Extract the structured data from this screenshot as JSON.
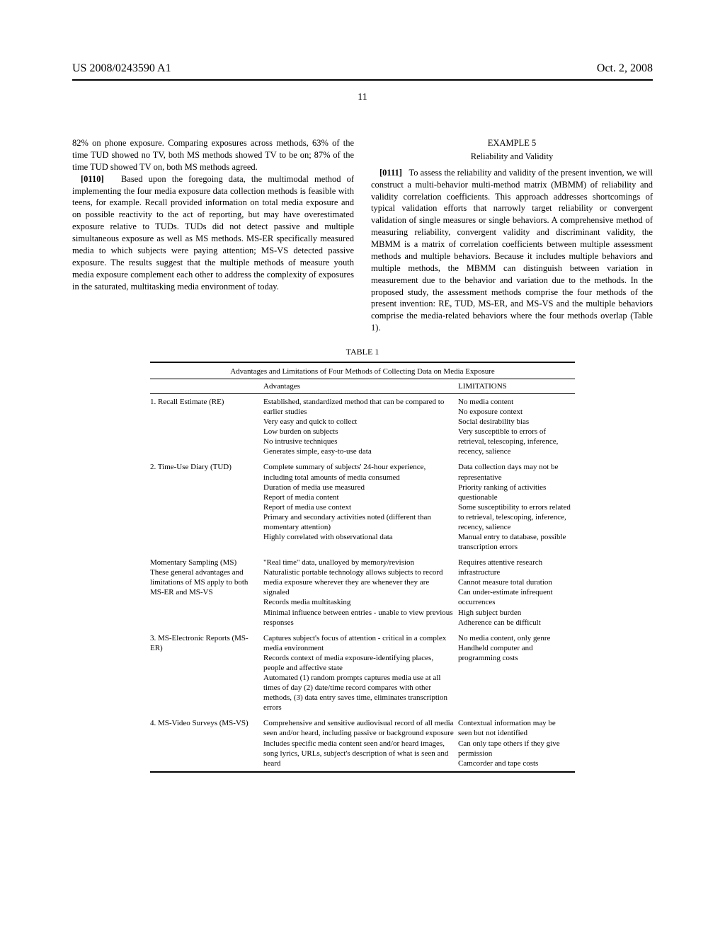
{
  "header": {
    "pub_number": "US 2008/0243590 A1",
    "pub_date": "Oct. 2, 2008",
    "page_number": "11"
  },
  "left_column": {
    "para1": "82% on phone exposure. Comparing exposures across methods, 63% of the time TUD showed no TV, both MS methods showed TV to be on; 87% of the time TUD showed TV on, both MS methods agreed.",
    "para2_num": "[0110]",
    "para2": "Based upon the foregoing data, the multimodal method of implementing the four media exposure data collection methods is feasible with teens, for example. Recall provided information on total media exposure and on possible reactivity to the act of reporting, but may have overestimated exposure relative to TUDs. TUDs did not detect passive and multiple simultaneous exposure as well as MS methods. MS-ER specifically measured media to which subjects were paying attention; MS-VS detected passive exposure. The results suggest that the multiple methods of measure youth media exposure complement each other to address the complexity of exposures in the saturated, multitasking media environment of today."
  },
  "right_column": {
    "example_label": "EXAMPLE 5",
    "example_title": "Reliability and Validity",
    "para_num": "[0111]",
    "para": "To assess the reliability and validity of the present invention, we will construct a multi-behavior multi-method matrix (MBMM) of reliability and validity correlation coefficients. This approach addresses shortcomings of typical validation efforts that narrowly target reliability or convergent validation of single measures or single behaviors. A comprehensive method of measuring reliability, convergent validity and discriminant validity, the MBMM is a matrix of correlation coefficients between multiple assessment methods and multiple behaviors. Because it includes multiple behaviors and multiple methods, the MBMM can distinguish between variation in measurement due to the behavior and variation due to the methods. In the proposed study, the assessment methods comprise the four methods of the present invention: RE, TUD, MS-ER, and MS-VS and the multiple behaviors comprise the media-related behaviors where the four methods overlap (Table 1)."
  },
  "table": {
    "label": "TABLE 1",
    "title": "Advantages and Limitations of Four Methods of Collecting Data on Media Exposure",
    "headers": {
      "method": "",
      "advantages": "Advantages",
      "limitations": "LIMITATIONS"
    },
    "rows": [
      {
        "method": "1. Recall Estimate (RE)",
        "advantages": "Established, standardized method that can be compared to earlier studies\nVery easy and quick to collect\nLow burden on subjects\nNo intrusive techniques\nGenerates simple, easy-to-use data",
        "limitations": "No media content\nNo exposure context\nSocial desirability bias\nVery susceptible to errors of retrieval, telescoping, inference, recency, salience"
      },
      {
        "method": "2. Time-Use Diary (TUD)",
        "advantages": "Complete summary of subjects' 24-hour experience, including total amounts of media consumed\nDuration of media use measured\nReport of media content\nReport of media use context\nPrimary and secondary activities noted (different than momentary attention)\nHighly correlated with observational data",
        "limitations": "Data collection days may not be representative\nPriority ranking of activities questionable\nSome susceptibility to errors related to retrieval, telescoping, inference, recency, salience\nManual entry to database, possible transcription errors"
      },
      {
        "method": "Momentary Sampling (MS)\nThese general advantages and limitations of MS apply to both MS-ER and MS-VS",
        "advantages": "\"Real time\" data, unalloyed by memory/revision\nNaturalistic portable technology allows subjects to record media exposure wherever they are whenever they are signaled\nRecords media multitasking\nMinimal influence between entries - unable to view previous responses",
        "limitations": "Requires attentive research infrastructure\nCannot measure total duration\nCan under-estimate infrequent occurrences\nHigh subject burden\nAdherence can be difficult"
      },
      {
        "method": "3. MS-Electronic Reports (MS-ER)",
        "advantages": "Captures subject's focus of attention - critical in a complex media environment\nRecords context of media exposure-identifying places, people and affective state\nAutomated (1) random prompts captures media use at all times of day (2) date/time record compares with other methods, (3) data entry saves time, eliminates transcription errors",
        "limitations": "No media content, only genre\nHandheld computer and programming costs"
      },
      {
        "method": "4. MS-Video Surveys (MS-VS)",
        "advantages": "Comprehensive and sensitive audiovisual record of all media seen and/or heard, including passive or background exposure\nIncludes specific media content seen and/or heard images, song lyrics, URLs, subject's description of what is seen and heard",
        "limitations": "Contextual information may be seen but not identified\nCan only tape others if they give permission\nCamcorder and tape costs"
      }
    ]
  }
}
